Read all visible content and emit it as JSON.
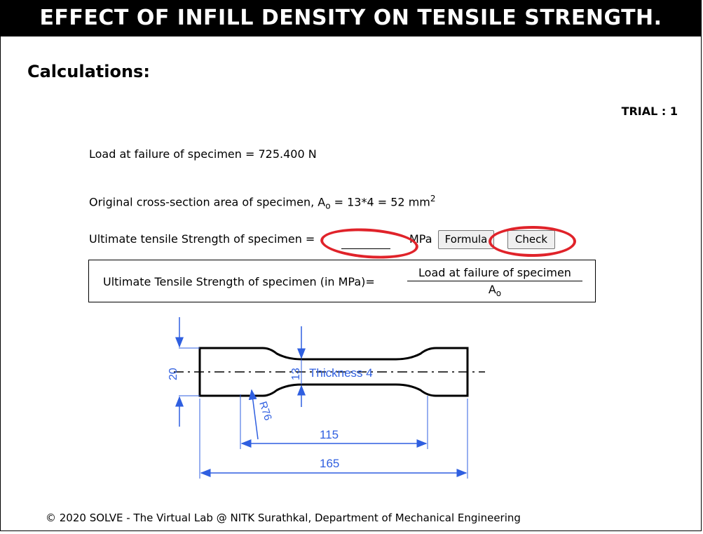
{
  "header": {
    "title": "EFFECT OF INFILL DENSITY ON TENSILE STRENGTH."
  },
  "section": {
    "title": "Calculations:"
  },
  "trial": {
    "label": "TRIAL : 1"
  },
  "calc": {
    "load_text": "Load at failure of specimen = 725.400 N",
    "area_prefix": "Original cross-section area of specimen, A",
    "area_sub": "o",
    "area_mid": " = 13*4 = 52 mm",
    "area_sup": "2",
    "uts_label": "Ultimate tensile Strength of specimen =",
    "uts_value": "",
    "uts_unit": "MPa",
    "formula_button": "Formula",
    "check_button": "Check"
  },
  "formula": {
    "lhs": "Ultimate Tensile Strength of specimen (in MPa)=",
    "numerator": "Load at failure of specimen",
    "denominator_main": "A",
    "denominator_sub": "o"
  },
  "drawing": {
    "width_label": "20",
    "neck_label": "13",
    "thickness_label": "Thickness 4",
    "radius_label": "R76",
    "gauge_length_label": "115",
    "total_length_label": "165",
    "dimension_color": "#2f5fe0"
  },
  "highlight_color": "#e0232a",
  "footer": {
    "text": "© 2020 SOLVE - The Virtual Lab @ NITK Surathkal, Department of Mechanical Engineering"
  }
}
